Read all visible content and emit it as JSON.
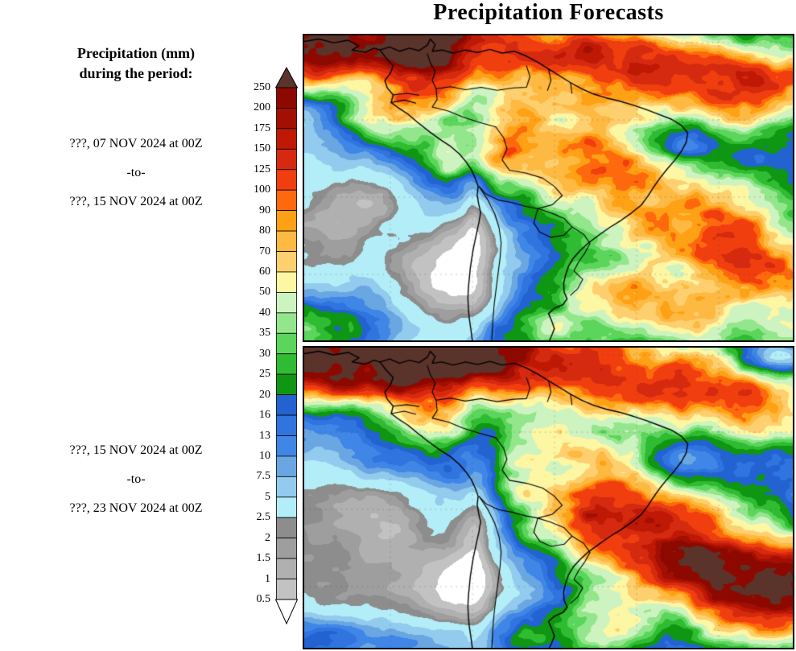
{
  "title": "Precipitation Forecasts",
  "legend": {
    "heading_line1": "Precipitation (mm)",
    "heading_line2": "during the period:"
  },
  "panels": [
    {
      "name": "forecast-period-1",
      "start": "???, 07 NOV 2024 at 00Z",
      "separator": "-to-",
      "end": "???, 15 NOV 2024 at 00Z"
    },
    {
      "name": "forecast-period-2",
      "start": "???, 15 NOV 2024 at 00Z",
      "separator": "-to-",
      "end": "???, 23 NOV 2024 at 00Z"
    }
  ],
  "colorbar": {
    "units": "mm",
    "levels_top_to_bottom": [
      "250",
      "200",
      "175",
      "150",
      "125",
      "100",
      "90",
      "80",
      "70",
      "60",
      "50",
      "40",
      "35",
      "30",
      "25",
      "20",
      "16",
      "13",
      "10",
      "7.5",
      "5",
      "2.5",
      "2",
      "1.5",
      "1",
      "0.5"
    ],
    "segment_colors_top_to_bottom": [
      "#8d0900",
      "#a30f03",
      "#bf1906",
      "#d52a10",
      "#f03e0e",
      "#fe690d",
      "#ffa114",
      "#feb942",
      "#fecf6e",
      "#fdf6a3",
      "#cdf3c0",
      "#94e68c",
      "#5bd55b",
      "#2fbb32",
      "#0f9612",
      "#2263d1",
      "#2f74df",
      "#3f86e6",
      "#6aa7e2",
      "#93cbee",
      "#b3edf7",
      "#8d8d8d",
      "#9e9e9e",
      "#b0b0b0",
      "#c2c2c2"
    ],
    "above_max_color": "#5a332b",
    "below_min_color": "#ffffff",
    "outline_color": "#000000"
  },
  "chart_data": {
    "type": "heatmap",
    "subtype": "geographic-precipitation-map",
    "region": "South America and adjacent oceans",
    "title": "Precipitation Forecasts",
    "colorbar_label": "Precipitation (mm) during the period:",
    "levels_mm": [
      0.5,
      1,
      1.5,
      2,
      2.5,
      5,
      7.5,
      10,
      13,
      16,
      20,
      25,
      30,
      35,
      40,
      50,
      60,
      70,
      80,
      90,
      100,
      125,
      150,
      175,
      200,
      250
    ],
    "panels": [
      {
        "period_start": "???, 07 NOV 2024 at 00Z",
        "period_end": "???, 15 NOV 2024 at 00Z"
      },
      {
        "period_start": "???, 15 NOV 2024 at 00Z",
        "period_end": "???, 23 NOV 2024 at 00Z"
      }
    ],
    "legend_position": "left of panels, vertical color scale with arrow caps (above 250 mm dark maroon, below 0.5 mm white)"
  }
}
